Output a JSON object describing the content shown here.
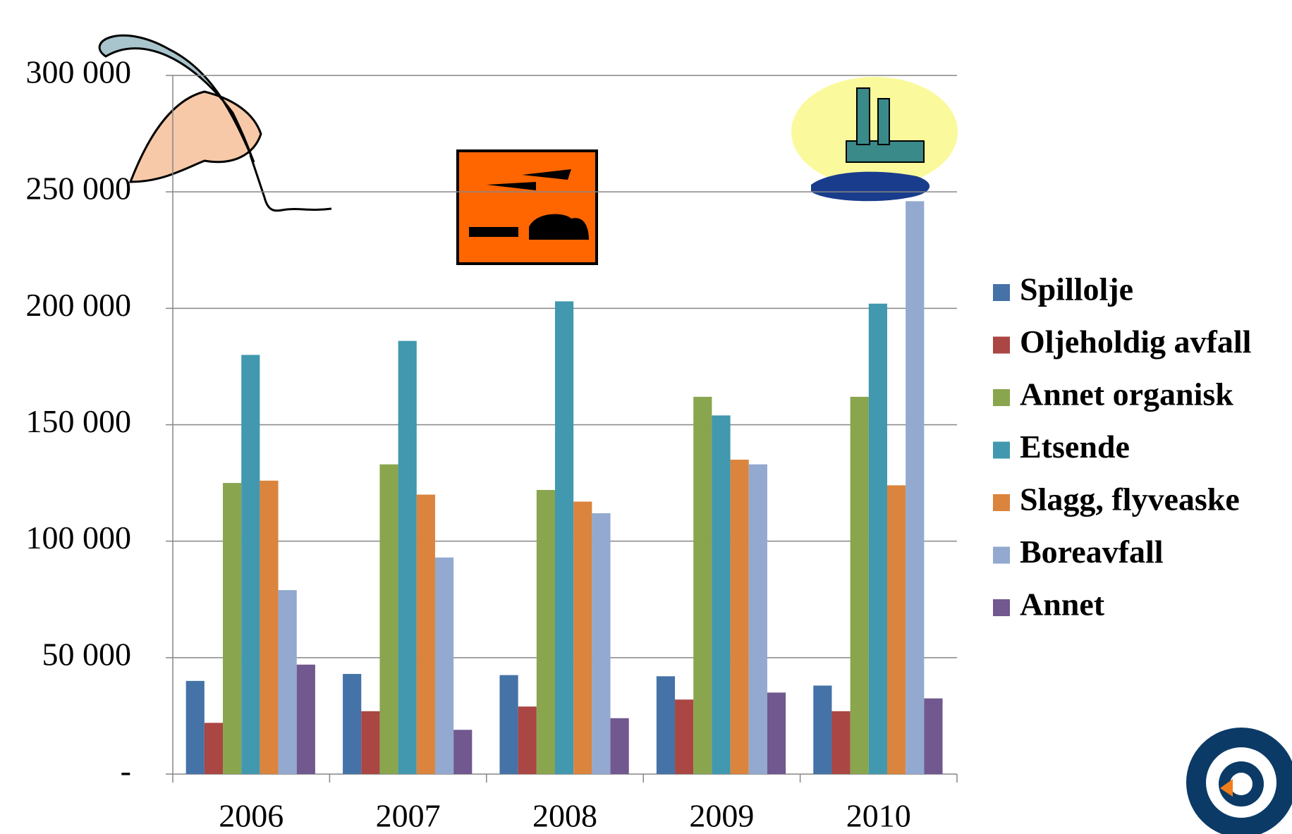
{
  "chart_data": {
    "type": "bar",
    "categories": [
      "2006",
      "2007",
      "2008",
      "2009",
      "2010"
    ],
    "series": [
      {
        "name": "Spillolje",
        "color": "#4572a7",
        "values": [
          40000,
          43000,
          42500,
          42000,
          38000
        ]
      },
      {
        "name": "Oljeholdig avfall",
        "color": "#aa4643",
        "values": [
          22000,
          27000,
          29000,
          32000,
          27000
        ]
      },
      {
        "name": "Annet organisk",
        "color": "#89a54e",
        "values": [
          125000,
          133000,
          122000,
          162000,
          162000
        ]
      },
      {
        "name": "Etsende",
        "color": "#4198af",
        "values": [
          180000,
          186000,
          203000,
          154000,
          202000
        ]
      },
      {
        "name": "Slagg, flyveaske",
        "color": "#db843d",
        "values": [
          126000,
          120000,
          117000,
          135000,
          124000
        ]
      },
      {
        "name": "Boreavfall",
        "color": "#93a9cf",
        "values": [
          79000,
          93000,
          112000,
          133000,
          246000
        ]
      },
      {
        "name": "Annet",
        "color": "#71588f",
        "values": [
          47000,
          19000,
          24000,
          35000,
          32500
        ]
      }
    ],
    "ylim": [
      0,
      300000
    ],
    "yticks": [
      {
        "value": 0,
        "label": "-"
      },
      {
        "value": 50000,
        "label": "50 000"
      },
      {
        "value": 100000,
        "label": "100 000"
      },
      {
        "value": 150000,
        "label": "150 000"
      },
      {
        "value": 200000,
        "label": "200 000"
      },
      {
        "value": 250000,
        "label": "250 000"
      },
      {
        "value": 300000,
        "label": "300 000"
      }
    ],
    "grid": true,
    "legend": "right"
  }
}
